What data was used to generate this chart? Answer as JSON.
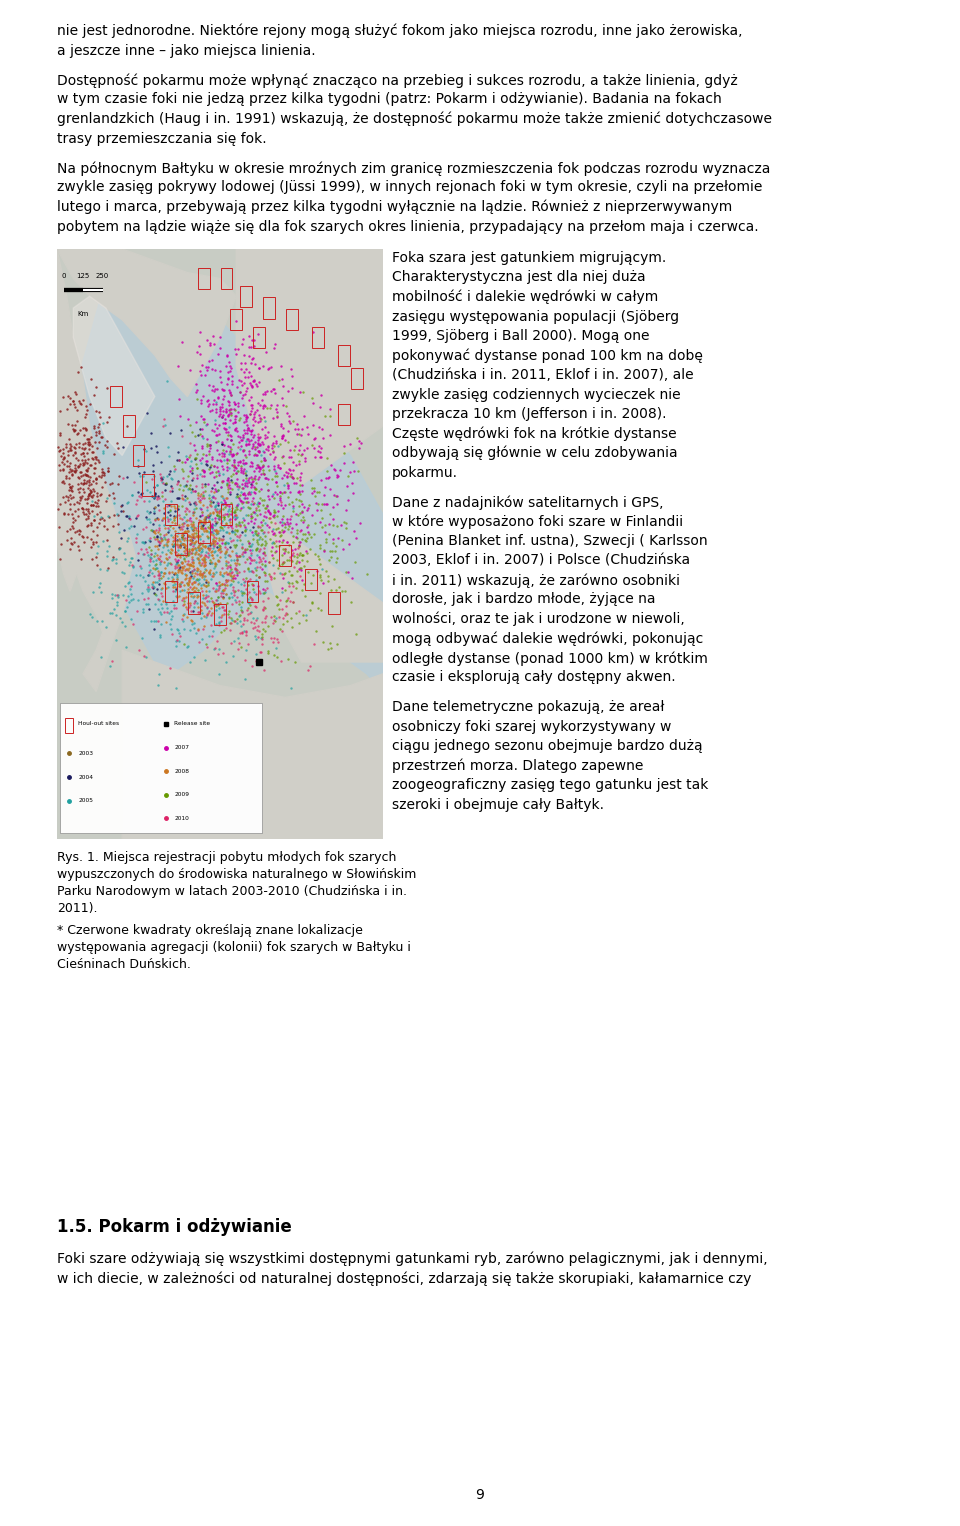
{
  "background_color": "#ffffff",
  "page_width": 9.6,
  "page_height": 15.26,
  "text_color": "#000000",
  "font_size_body": 10.0,
  "font_size_caption": 9.0,
  "font_size_heading": 12.0,
  "p1_lines": [
    "nie jest jednorodne. Niektóre rejony mogą służyć fokom jako miejsca rozrodu, inne jako żerowiska,",
    "a jeszcze inne – jako miejsca linienia."
  ],
  "p2_lines": [
    "Dostępność pokarmu może wpłynąć znacząco na przebieg i sukces rozrodu, a także linienia, gdyż",
    "w tym czasie foki nie jedzą przez kilka tygodni (patrz: Pokarm i odżywianie). Badania na fokach",
    "grenlandzkich (Haug i in. 1991) wskazują, że dostępność pokarmu może także zmienić dotychczasowe",
    "trasy przemieszczania się fok."
  ],
  "p3_lines": [
    "Na północnym Bałtyku w okresie mroźnych zim granicę rozmieszczenia fok podczas rozrodu wyznacza",
    "zwykle zasięg pokrywy lodowej (Jüssi 1999), w innych rejonach foki w tym okresie, czyli na przełomie",
    "lutego i marca, przebywają przez kilka tygodni wyłącznie na lądzie. Również z nieprzerwywanym",
    "pobytem na lądzie wiąże się dla fok szarych okres linienia, przypadający na przełom maja i czerwca."
  ],
  "rc_p1": [
    "Foka szara jest gatunkiem migrującym.",
    "Charakterystyczna jest dla niej duża",
    "mobilność i dalekie wędrówki w całym",
    "zasięgu występowania populacji (Sjöberg",
    "1999, Sjöberg i Ball 2000). Mogą one",
    "pokonywać dystanse ponad 100 km na dobę",
    "(Chudzińska i in. 2011, Eklof i in. 2007), ale",
    "zwykle zasięg codziennych wycieczek nie",
    "przekracza 10 km (Jefferson i in. 2008).",
    "Częste wędrówki fok na krótkie dystanse",
    "odbywają się głównie w celu zdobywania",
    "pokarmu."
  ],
  "rc_p2": [
    "Dane z nadajników satelitarnych i GPS,",
    "w które wyposażono foki szare w Finlandii",
    "(Penina Blanket inf. ustna), Szwecji ( Karlsson",
    "2003, Eklof i in. 2007) i Polsce (Chudzińska",
    "i in. 2011) wskazują, że zarówno osobniki",
    "dorosłe, jak i bardzo młode, żyjące na",
    "wolności, oraz te jak i urodzone w niewoli,",
    "mogą odbywać dalekie wędrówki, pokonując",
    "odległe dystanse (ponad 1000 km) w krótkim",
    "czasie i eksplorują cały dostępny akwen."
  ],
  "rc_p3": [
    "Dane telemetryczne pokazują, że areał",
    "osobniczy foki szarej wykorzystywany w",
    "ciągu jednego sezonu obejmuje bardzo dużą",
    "przestrzeń morza. Dlatego zapewne",
    "zoogeograficzny zasięg tego gatunku jest tak",
    "szeroki i obejmuje cały Bałtyk."
  ],
  "caption_lines": [
    "Rys. 1. Miejsca rejestracji pobytu młodych fok szarych",
    "wypuszczonych do środowiska naturalnego w Słowińskim",
    "Parku Narodowym w latach 2003-2010 (Chudzińska i in.",
    "2011)."
  ],
  "footnote_lines": [
    "* Czerwone kwadraty określają znane lokalizacje",
    "występowania agregacji (kolonii) fok szarych w Bałtyku i",
    "Cieśninach Duńskich."
  ],
  "section_heading": "1.5. Pokarm i odżywianie",
  "last_lines": [
    "Foki szare odżywiają się wszystkimi dostępnymi gatunkami ryb, zarówno pelagicznymi, jak i dennymi,",
    "w ich diecie, w zależności od naturalnej dostępności, zdarzają się także skorupiaki, kałamarnice czy"
  ],
  "page_number": "9",
  "map_bg": "#d8d8d0",
  "sea_color": "#c8d8e8",
  "land_color": "#d8d0c0"
}
